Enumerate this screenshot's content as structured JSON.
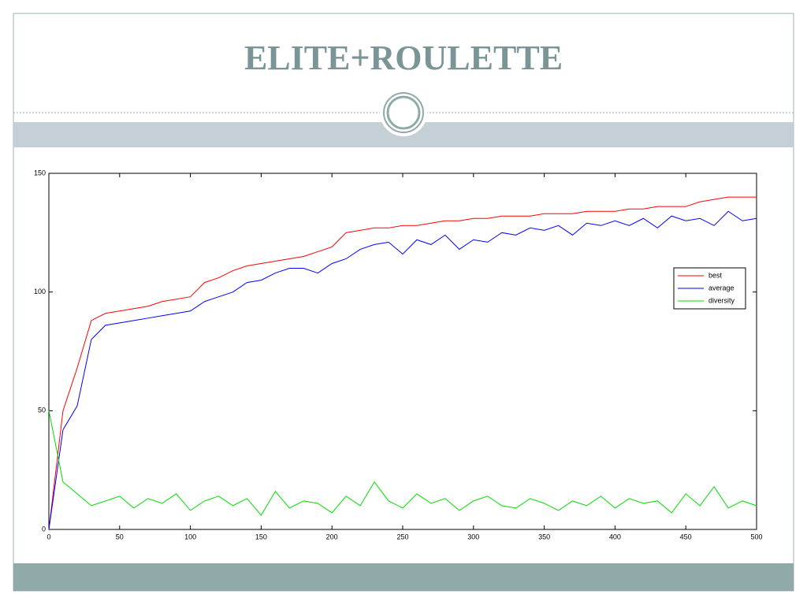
{
  "slide": {
    "title": "ELITE+ROULETTE"
  },
  "chart_data": {
    "type": "line",
    "x": [
      0,
      10,
      20,
      30,
      40,
      50,
      60,
      70,
      80,
      90,
      100,
      110,
      120,
      130,
      140,
      150,
      160,
      170,
      180,
      190,
      200,
      210,
      220,
      230,
      240,
      250,
      260,
      270,
      280,
      290,
      300,
      310,
      320,
      330,
      340,
      350,
      360,
      370,
      380,
      390,
      400,
      410,
      420,
      430,
      440,
      450,
      460,
      470,
      480,
      490,
      500
    ],
    "series": [
      {
        "name": "best",
        "color": "#ff0000",
        "values": [
          0,
          50,
          68,
          88,
          91,
          92,
          93,
          94,
          96,
          97,
          98,
          104,
          106,
          109,
          111,
          112,
          113,
          114,
          115,
          117,
          119,
          125,
          126,
          127,
          127,
          128,
          128,
          129,
          130,
          130,
          131,
          131,
          132,
          132,
          132,
          133,
          133,
          133,
          134,
          134,
          134,
          135,
          135,
          136,
          136,
          136,
          138,
          139,
          140,
          140,
          140
        ]
      },
      {
        "name": "average",
        "color": "#0000ff",
        "values": [
          0,
          42,
          52,
          80,
          86,
          87,
          88,
          89,
          90,
          91,
          92,
          96,
          98,
          100,
          104,
          105,
          108,
          110,
          110,
          108,
          112,
          114,
          118,
          120,
          121,
          116,
          122,
          120,
          124,
          118,
          122,
          121,
          125,
          124,
          127,
          126,
          128,
          124,
          129,
          128,
          130,
          128,
          131,
          127,
          132,
          130,
          131,
          128,
          134,
          130,
          131
        ]
      },
      {
        "name": "diversity",
        "color": "#00dd00",
        "values": [
          50,
          20,
          15,
          10,
          12,
          14,
          9,
          13,
          11,
          15,
          8,
          12,
          14,
          10,
          13,
          6,
          16,
          9,
          12,
          11,
          7,
          14,
          10,
          20,
          12,
          9,
          15,
          11,
          13,
          8,
          12,
          14,
          10,
          9,
          13,
          11,
          8,
          12,
          10,
          14,
          9,
          13,
          11,
          12,
          7,
          15,
          10,
          18,
          9,
          12,
          10
        ]
      }
    ],
    "xlim": [
      0,
      500
    ],
    "ylim": [
      0,
      150
    ],
    "xticks": [
      0,
      50,
      100,
      150,
      200,
      250,
      300,
      350,
      400,
      450,
      500
    ],
    "yticks": [
      0,
      50,
      100,
      150
    ],
    "grid": false,
    "legend": "northeast"
  }
}
